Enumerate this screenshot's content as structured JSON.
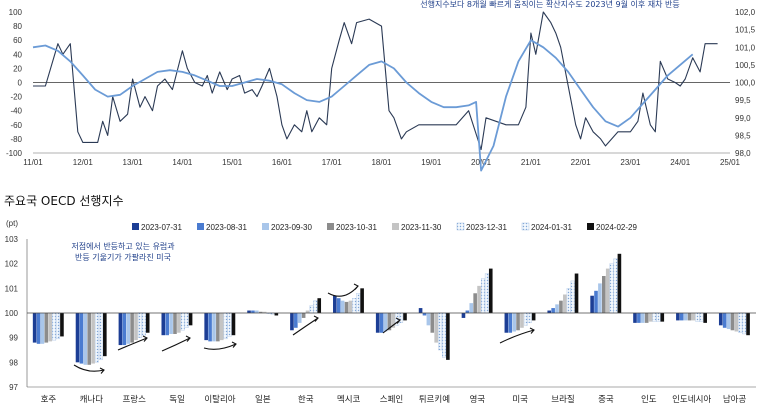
{
  "chart_data": [
    {
      "type": "line",
      "subtitle": "선행지수보다 8개월 빠르게 움직이는 확산지수도 2023년 9월 이후 재차 반등",
      "x_ticks": [
        "11/01",
        "12/01",
        "13/01",
        "14/01",
        "15/01",
        "16/01",
        "17/01",
        "18/01",
        "19/01",
        "20/01",
        "21/01",
        "22/01",
        "23/01",
        "24/01",
        "25/01"
      ],
      "ylim_left": [
        -100,
        100
      ],
      "y_ticks_left": [
        "100",
        "80",
        "60",
        "40",
        "20",
        "0",
        "-20",
        "-40",
        "-60",
        "-80",
        "-100"
      ],
      "ylim_right": [
        98.0,
        102.0
      ],
      "y_ticks_right": [
        "102,0",
        "101,5",
        "101,0",
        "100,5",
        "100,0",
        "99,5",
        "99,0",
        "98,5",
        "98,0"
      ],
      "series": [
        {
          "axis": "left",
          "color": "#2b3a55",
          "x": [
            2011.0,
            2011.25,
            2011.5,
            2011.6,
            2011.75,
            2011.9,
            2012.0,
            2012.15,
            2012.3,
            2012.4,
            2012.5,
            2012.6,
            2012.75,
            2012.9,
            2013.0,
            2013.15,
            2013.25,
            2013.4,
            2013.5,
            2013.65,
            2013.8,
            2014.0,
            2014.1,
            2014.25,
            2014.4,
            2014.5,
            2014.6,
            2014.75,
            2014.9,
            2015.0,
            2015.15,
            2015.25,
            2015.4,
            2015.5,
            2015.6,
            2015.75,
            2015.9,
            2016.0,
            2016.1,
            2016.25,
            2016.4,
            2016.5,
            2016.6,
            2016.75,
            2016.9,
            2017.0,
            2017.15,
            2017.25,
            2017.4,
            2017.5,
            2017.75,
            2018.0,
            2018.15,
            2018.25,
            2018.4,
            2018.5,
            2018.75,
            2019.0,
            2019.25,
            2019.5,
            2019.75,
            2020.0,
            2020.1,
            2020.5,
            2020.75,
            2020.9,
            2021.0,
            2021.1,
            2021.25,
            2021.4,
            2021.5,
            2021.6,
            2021.75,
            2021.9,
            2022.0,
            2022.1,
            2022.25,
            2022.4,
            2022.5,
            2022.75,
            2023.0,
            2023.15,
            2023.25,
            2023.4,
            2023.5,
            2023.6,
            2023.75,
            2023.9,
            2024.0,
            2024.1,
            2024.25,
            2024.4,
            2024.5,
            2024.75
          ],
          "y": [
            -5,
            -5,
            55,
            40,
            55,
            -70,
            -85,
            -85,
            -85,
            -55,
            -75,
            -20,
            -55,
            -45,
            5,
            -35,
            -20,
            -40,
            -5,
            5,
            -10,
            45,
            20,
            0,
            -5,
            10,
            -15,
            15,
            -10,
            5,
            10,
            -15,
            -10,
            -20,
            -5,
            20,
            -20,
            -60,
            -80,
            -60,
            -70,
            -40,
            -70,
            -50,
            -60,
            20,
            60,
            85,
            55,
            85,
            90,
            80,
            -40,
            -50,
            -80,
            -70,
            -60,
            -60,
            -60,
            -60,
            -40,
            -95,
            -50,
            -60,
            -60,
            -35,
            70,
            40,
            100,
            85,
            70,
            50,
            -5,
            -60,
            -80,
            -50,
            -70,
            -80,
            -90,
            -70,
            -70,
            -55,
            -15,
            -60,
            -70,
            30,
            5,
            0,
            -5,
            5,
            35,
            15,
            55,
            55
          ]
        },
        {
          "axis": "right",
          "color": "#6b9bd6",
          "x": [
            2011.0,
            2011.25,
            2011.5,
            2011.75,
            2012.0,
            2012.25,
            2012.5,
            2012.75,
            2013.0,
            2013.25,
            2013.5,
            2013.75,
            2014.0,
            2014.25,
            2014.5,
            2014.75,
            2015.0,
            2015.25,
            2015.5,
            2015.75,
            2016.0,
            2016.25,
            2016.5,
            2016.75,
            2017.0,
            2017.25,
            2017.5,
            2017.75,
            2018.0,
            2018.25,
            2018.5,
            2018.75,
            2019.0,
            2019.25,
            2019.5,
            2019.75,
            2019.9,
            2020.0,
            2020.25,
            2020.5,
            2020.75,
            2021.0,
            2021.25,
            2021.5,
            2021.75,
            2022.0,
            2022.25,
            2022.5,
            2022.75,
            2023.0,
            2023.25,
            2023.5,
            2023.75,
            2024.0,
            2024.25
          ],
          "y": [
            101.0,
            101.05,
            100.9,
            100.6,
            100.2,
            99.8,
            99.6,
            99.65,
            99.9,
            100.1,
            100.3,
            100.35,
            100.3,
            100.2,
            100.05,
            99.9,
            99.9,
            100.0,
            100.1,
            100.05,
            99.95,
            99.7,
            99.5,
            99.45,
            99.6,
            99.9,
            100.2,
            100.5,
            100.6,
            100.4,
            100.0,
            99.7,
            99.45,
            99.3,
            99.3,
            99.35,
            99.45,
            97.5,
            98.2,
            99.6,
            100.6,
            101.2,
            101.0,
            100.7,
            100.3,
            99.8,
            99.3,
            98.9,
            98.75,
            99.0,
            99.4,
            99.8,
            100.2,
            100.5,
            100.8
          ]
        }
      ]
    },
    {
      "type": "bar",
      "title": "주요국 OECD 선행지수",
      "ylabel": "(pt)",
      "ylim": [
        97,
        103
      ],
      "y_ticks": [
        "103",
        "102",
        "101",
        "100",
        "99",
        "98",
        "97"
      ],
      "annotation_lines": [
        "저점에서 반등하고 있는 유럽과",
        "반등 기울기가 가팔라진 미국"
      ],
      "categories": [
        "호주",
        "캐나다",
        "프랑스",
        "독일",
        "이탈리아",
        "일본",
        "한국",
        "멕시코",
        "스페인",
        "튀르키예",
        "영국",
        "미국",
        "브라질",
        "중국",
        "인도",
        "인도네시아",
        "남아공"
      ],
      "series": [
        {
          "name": "2023-07-31",
          "color": "#1c3e95",
          "pattern": "solid",
          "values": [
            98.8,
            98.0,
            98.7,
            99.1,
            98.9,
            100.1,
            99.3,
            100.7,
            99.2,
            100.2,
            99.8,
            99.2,
            100.1,
            100.7,
            99.6,
            99.7,
            99.5
          ]
        },
        {
          "name": "2023-08-31",
          "color": "#4a7bd0",
          "pattern": "solid",
          "values": [
            98.75,
            97.95,
            98.7,
            99.1,
            98.85,
            100.1,
            99.4,
            100.6,
            99.2,
            99.9,
            100.1,
            99.2,
            100.2,
            100.9,
            99.6,
            99.7,
            99.4
          ]
        },
        {
          "name": "2023-09-30",
          "color": "#a9c6ea",
          "pattern": "solid",
          "values": [
            98.75,
            97.9,
            98.75,
            99.15,
            98.85,
            100.1,
            99.6,
            100.5,
            99.25,
            99.5,
            100.4,
            99.25,
            100.35,
            101.2,
            99.6,
            99.7,
            99.35
          ]
        },
        {
          "name": "2023-10-31",
          "color": "#8c8c8c",
          "pattern": "solid",
          "values": [
            98.8,
            97.9,
            98.8,
            99.15,
            98.85,
            100.05,
            99.8,
            100.45,
            99.3,
            99.2,
            100.8,
            99.3,
            100.5,
            101.5,
            99.6,
            99.7,
            99.3
          ]
        },
        {
          "name": "2023-11-30",
          "color": "#c4c4c4",
          "pattern": "solid",
          "values": [
            98.85,
            97.95,
            98.9,
            99.2,
            98.9,
            100.05,
            100.1,
            100.5,
            99.4,
            98.8,
            101.1,
            99.4,
            100.75,
            101.8,
            99.65,
            99.7,
            99.25
          ]
        },
        {
          "name": "2023-12-31",
          "color": "#e8f1fb",
          "pattern": "dots",
          "values": [
            98.9,
            98.0,
            99.0,
            99.3,
            98.95,
            100.0,
            100.3,
            100.6,
            99.5,
            98.5,
            101.4,
            99.5,
            101.0,
            102.0,
            99.65,
            99.65,
            99.2
          ]
        },
        {
          "name": "2024-01-31",
          "color": "#d0e0f3",
          "pattern": "dots",
          "values": [
            98.95,
            98.1,
            99.1,
            99.4,
            99.05,
            99.95,
            100.5,
            100.8,
            99.6,
            98.2,
            101.6,
            99.6,
            101.3,
            102.2,
            99.65,
            99.65,
            99.15
          ]
        },
        {
          "name": "2024-02-29",
          "color": "#111111",
          "pattern": "solid",
          "values": [
            99.05,
            98.25,
            99.2,
            99.5,
            99.1,
            99.9,
            100.6,
            101.0,
            99.7,
            98.1,
            101.8,
            99.7,
            101.6,
            102.4,
            99.65,
            99.6,
            99.1
          ]
        }
      ]
    }
  ]
}
